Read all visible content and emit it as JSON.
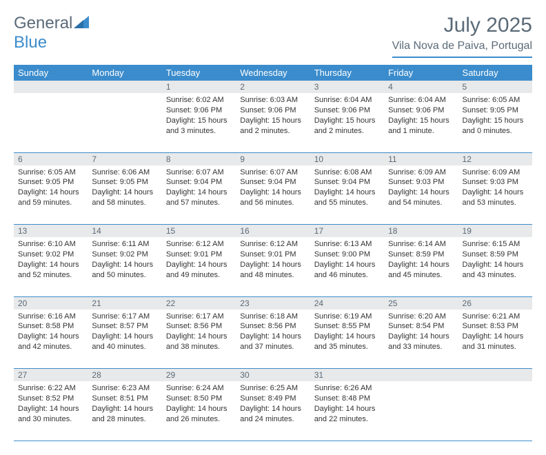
{
  "brand": {
    "part1": "General",
    "part2": "Blue"
  },
  "title": "July 2025",
  "location": "Vila Nova de Paiva, Portugal",
  "colors": {
    "accent": "#3b8ccc",
    "header_text": "#5a6a78",
    "daynum_bg": "#e8e9ea",
    "body_text": "#333333",
    "white": "#ffffff"
  },
  "typography": {
    "title_fontsize": 30,
    "location_fontsize": 16,
    "dayhead_fontsize": 13,
    "daynum_fontsize": 12,
    "cell_fontsize": 11
  },
  "day_headers": [
    "Sunday",
    "Monday",
    "Tuesday",
    "Wednesday",
    "Thursday",
    "Friday",
    "Saturday"
  ],
  "weeks": [
    [
      {
        "day": "",
        "sunrise": "",
        "sunset": "",
        "daylight": ""
      },
      {
        "day": "",
        "sunrise": "",
        "sunset": "",
        "daylight": ""
      },
      {
        "day": "1",
        "sunrise": "Sunrise: 6:02 AM",
        "sunset": "Sunset: 9:06 PM",
        "daylight": "Daylight: 15 hours and 3 minutes."
      },
      {
        "day": "2",
        "sunrise": "Sunrise: 6:03 AM",
        "sunset": "Sunset: 9:06 PM",
        "daylight": "Daylight: 15 hours and 2 minutes."
      },
      {
        "day": "3",
        "sunrise": "Sunrise: 6:04 AM",
        "sunset": "Sunset: 9:06 PM",
        "daylight": "Daylight: 15 hours and 2 minutes."
      },
      {
        "day": "4",
        "sunrise": "Sunrise: 6:04 AM",
        "sunset": "Sunset: 9:06 PM",
        "daylight": "Daylight: 15 hours and 1 minute."
      },
      {
        "day": "5",
        "sunrise": "Sunrise: 6:05 AM",
        "sunset": "Sunset: 9:05 PM",
        "daylight": "Daylight: 15 hours and 0 minutes."
      }
    ],
    [
      {
        "day": "6",
        "sunrise": "Sunrise: 6:05 AM",
        "sunset": "Sunset: 9:05 PM",
        "daylight": "Daylight: 14 hours and 59 minutes."
      },
      {
        "day": "7",
        "sunrise": "Sunrise: 6:06 AM",
        "sunset": "Sunset: 9:05 PM",
        "daylight": "Daylight: 14 hours and 58 minutes."
      },
      {
        "day": "8",
        "sunrise": "Sunrise: 6:07 AM",
        "sunset": "Sunset: 9:04 PM",
        "daylight": "Daylight: 14 hours and 57 minutes."
      },
      {
        "day": "9",
        "sunrise": "Sunrise: 6:07 AM",
        "sunset": "Sunset: 9:04 PM",
        "daylight": "Daylight: 14 hours and 56 minutes."
      },
      {
        "day": "10",
        "sunrise": "Sunrise: 6:08 AM",
        "sunset": "Sunset: 9:04 PM",
        "daylight": "Daylight: 14 hours and 55 minutes."
      },
      {
        "day": "11",
        "sunrise": "Sunrise: 6:09 AM",
        "sunset": "Sunset: 9:03 PM",
        "daylight": "Daylight: 14 hours and 54 minutes."
      },
      {
        "day": "12",
        "sunrise": "Sunrise: 6:09 AM",
        "sunset": "Sunset: 9:03 PM",
        "daylight": "Daylight: 14 hours and 53 minutes."
      }
    ],
    [
      {
        "day": "13",
        "sunrise": "Sunrise: 6:10 AM",
        "sunset": "Sunset: 9:02 PM",
        "daylight": "Daylight: 14 hours and 52 minutes."
      },
      {
        "day": "14",
        "sunrise": "Sunrise: 6:11 AM",
        "sunset": "Sunset: 9:02 PM",
        "daylight": "Daylight: 14 hours and 50 minutes."
      },
      {
        "day": "15",
        "sunrise": "Sunrise: 6:12 AM",
        "sunset": "Sunset: 9:01 PM",
        "daylight": "Daylight: 14 hours and 49 minutes."
      },
      {
        "day": "16",
        "sunrise": "Sunrise: 6:12 AM",
        "sunset": "Sunset: 9:01 PM",
        "daylight": "Daylight: 14 hours and 48 minutes."
      },
      {
        "day": "17",
        "sunrise": "Sunrise: 6:13 AM",
        "sunset": "Sunset: 9:00 PM",
        "daylight": "Daylight: 14 hours and 46 minutes."
      },
      {
        "day": "18",
        "sunrise": "Sunrise: 6:14 AM",
        "sunset": "Sunset: 8:59 PM",
        "daylight": "Daylight: 14 hours and 45 minutes."
      },
      {
        "day": "19",
        "sunrise": "Sunrise: 6:15 AM",
        "sunset": "Sunset: 8:59 PM",
        "daylight": "Daylight: 14 hours and 43 minutes."
      }
    ],
    [
      {
        "day": "20",
        "sunrise": "Sunrise: 6:16 AM",
        "sunset": "Sunset: 8:58 PM",
        "daylight": "Daylight: 14 hours and 42 minutes."
      },
      {
        "day": "21",
        "sunrise": "Sunrise: 6:17 AM",
        "sunset": "Sunset: 8:57 PM",
        "daylight": "Daylight: 14 hours and 40 minutes."
      },
      {
        "day": "22",
        "sunrise": "Sunrise: 6:17 AM",
        "sunset": "Sunset: 8:56 PM",
        "daylight": "Daylight: 14 hours and 38 minutes."
      },
      {
        "day": "23",
        "sunrise": "Sunrise: 6:18 AM",
        "sunset": "Sunset: 8:56 PM",
        "daylight": "Daylight: 14 hours and 37 minutes."
      },
      {
        "day": "24",
        "sunrise": "Sunrise: 6:19 AM",
        "sunset": "Sunset: 8:55 PM",
        "daylight": "Daylight: 14 hours and 35 minutes."
      },
      {
        "day": "25",
        "sunrise": "Sunrise: 6:20 AM",
        "sunset": "Sunset: 8:54 PM",
        "daylight": "Daylight: 14 hours and 33 minutes."
      },
      {
        "day": "26",
        "sunrise": "Sunrise: 6:21 AM",
        "sunset": "Sunset: 8:53 PM",
        "daylight": "Daylight: 14 hours and 31 minutes."
      }
    ],
    [
      {
        "day": "27",
        "sunrise": "Sunrise: 6:22 AM",
        "sunset": "Sunset: 8:52 PM",
        "daylight": "Daylight: 14 hours and 30 minutes."
      },
      {
        "day": "28",
        "sunrise": "Sunrise: 6:23 AM",
        "sunset": "Sunset: 8:51 PM",
        "daylight": "Daylight: 14 hours and 28 minutes."
      },
      {
        "day": "29",
        "sunrise": "Sunrise: 6:24 AM",
        "sunset": "Sunset: 8:50 PM",
        "daylight": "Daylight: 14 hours and 26 minutes."
      },
      {
        "day": "30",
        "sunrise": "Sunrise: 6:25 AM",
        "sunset": "Sunset: 8:49 PM",
        "daylight": "Daylight: 14 hours and 24 minutes."
      },
      {
        "day": "31",
        "sunrise": "Sunrise: 6:26 AM",
        "sunset": "Sunset: 8:48 PM",
        "daylight": "Daylight: 14 hours and 22 minutes."
      },
      {
        "day": "",
        "sunrise": "",
        "sunset": "",
        "daylight": ""
      },
      {
        "day": "",
        "sunrise": "",
        "sunset": "",
        "daylight": ""
      }
    ]
  ]
}
